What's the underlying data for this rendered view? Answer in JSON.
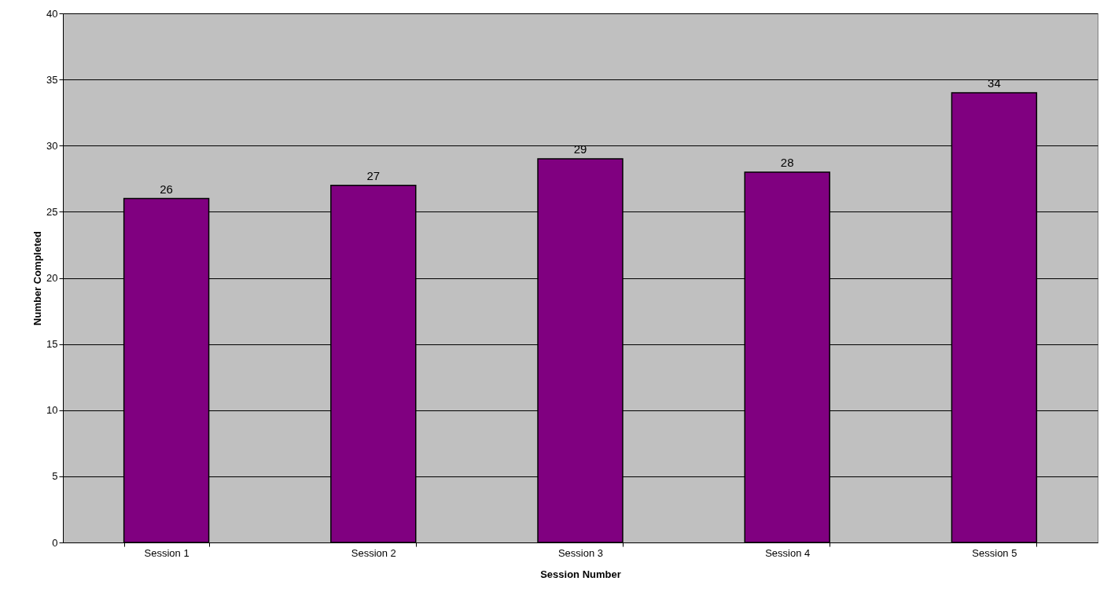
{
  "chart_data": {
    "type": "bar",
    "xlabel": "Session Number",
    "ylabel": "Number Completed",
    "categories": [
      "Session 1",
      "Session 2",
      "Session 3",
      "Session 4",
      "Session 5"
    ],
    "series": [
      {
        "color": "#800080",
        "values": [
          26,
          27,
          29,
          28,
          34
        ]
      }
    ],
    "ylim": [
      0,
      40
    ],
    "yticks": [
      0,
      5,
      10,
      15,
      20,
      25,
      30,
      35,
      40
    ],
    "grid": "y",
    "data_labels": true
  }
}
